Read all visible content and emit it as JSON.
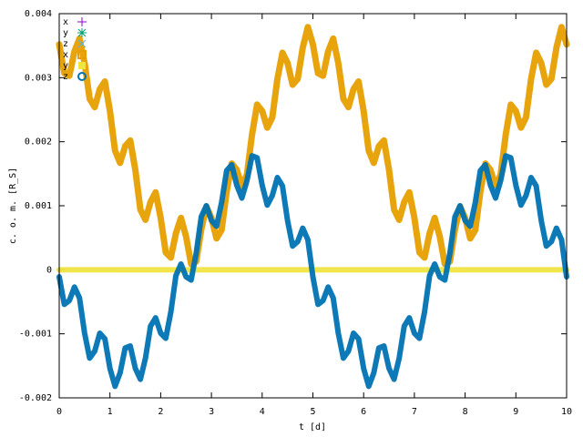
{
  "chart_data": {
    "type": "line",
    "xlabel": "t [d]",
    "ylabel": "c. o. m. [R_S]",
    "xlim": [
      0,
      10
    ],
    "xticks": [
      0,
      1,
      2,
      3,
      4,
      5,
      6,
      7,
      8,
      9,
      10
    ],
    "ylim": [
      -0.002,
      0.004
    ],
    "yticks": [
      -0.002,
      -0.001,
      0,
      0.001,
      0.002,
      0.003,
      0.004
    ],
    "legend": "top-left",
    "x": [
      0,
      0.1,
      0.2,
      0.3,
      0.4,
      0.5,
      0.6,
      0.7,
      0.8,
      0.9,
      1,
      1.1,
      1.2,
      1.3,
      1.4,
      1.5,
      1.6,
      1.7,
      1.8,
      1.9,
      2,
      2.1,
      2.2,
      2.3,
      2.4,
      2.5,
      2.6,
      2.7,
      2.8,
      2.9,
      3,
      3.1,
      3.2,
      3.3,
      3.4,
      3.5,
      3.6,
      3.7,
      3.8,
      3.9,
      4,
      4.1,
      4.2,
      4.3,
      4.4,
      4.5,
      4.6,
      4.7,
      4.8,
      4.9,
      5,
      5.1,
      5.2,
      5.3,
      5.4,
      5.5,
      5.6,
      5.7,
      5.8,
      5.9,
      6,
      6.1,
      6.2,
      6.3,
      6.4,
      6.5,
      6.6,
      6.7,
      6.8,
      6.9,
      7,
      7.1,
      7.2,
      7.3,
      7.4,
      7.5,
      7.6,
      7.7,
      7.8,
      7.9,
      8,
      8.1,
      8.2,
      8.3,
      8.4,
      8.5,
      8.6,
      8.7,
      8.8,
      8.9,
      9,
      9.1,
      9.2,
      9.3,
      9.4,
      9.5,
      9.6,
      9.7,
      9.8,
      9.9,
      10
    ],
    "series": [
      {
        "name": "x",
        "color": "#9400d3",
        "marker": "plus",
        "values": [
          null,
          null,
          null,
          null,
          null,
          null,
          null,
          null,
          null,
          null,
          null,
          null,
          null,
          null,
          null,
          null,
          null,
          null,
          null,
          null,
          null,
          null,
          null,
          null,
          null,
          null,
          null,
          null,
          null,
          null,
          null,
          null,
          null,
          null,
          null,
          null,
          null,
          null,
          null,
          null,
          null,
          null,
          null,
          null,
          null,
          null,
          null,
          null,
          null,
          null,
          null,
          null,
          null,
          null,
          null,
          null,
          null,
          null,
          null,
          null,
          null,
          null,
          null,
          null,
          null,
          null,
          null,
          null,
          null,
          null,
          null,
          null,
          null,
          null,
          null,
          null,
          null,
          null,
          null,
          null,
          null,
          null,
          null,
          null,
          null,
          null,
          null,
          null,
          null,
          null,
          null,
          null,
          null,
          null,
          null,
          null,
          null,
          null,
          null,
          null,
          null
        ]
      },
      {
        "name": "y",
        "color": "#009e73",
        "marker": "star",
        "values": [
          null,
          null,
          null,
          null,
          null,
          null,
          null,
          null,
          null,
          null,
          null,
          null,
          null,
          null,
          null,
          null,
          null,
          null,
          null,
          null,
          null,
          null,
          null,
          null,
          null,
          null,
          null,
          null,
          null,
          null,
          null,
          null,
          null,
          null,
          null,
          null,
          null,
          null,
          null,
          null,
          null,
          null,
          null,
          null,
          null,
          null,
          null,
          null,
          null,
          null,
          null,
          null,
          null,
          null,
          null,
          null,
          null,
          null,
          null,
          null,
          null,
          null,
          null,
          null,
          null,
          null,
          null,
          null,
          null,
          null,
          null,
          null,
          null,
          null,
          null,
          null,
          null,
          null,
          null,
          null,
          null,
          null,
          null,
          null,
          null,
          null,
          null,
          null,
          null,
          null,
          null,
          null,
          null,
          null,
          null,
          null,
          null,
          null,
          null,
          null,
          null
        ]
      },
      {
        "name": "z",
        "color": "#56b4e9",
        "marker": "cross",
        "values": [
          null,
          null,
          null,
          null,
          null,
          null,
          null,
          null,
          null,
          null,
          null,
          null,
          null,
          null,
          null,
          null,
          null,
          null,
          null,
          null,
          null,
          null,
          null,
          null,
          null,
          null,
          null,
          null,
          null,
          null,
          null,
          null,
          null,
          null,
          null,
          null,
          null,
          null,
          null,
          null,
          null,
          null,
          null,
          null,
          null,
          null,
          null,
          null,
          null,
          null,
          null,
          null,
          null,
          null,
          null,
          null,
          null,
          null,
          null,
          null,
          null,
          null,
          null,
          null,
          null,
          null,
          null,
          null,
          null,
          null,
          null,
          null,
          null,
          null,
          null,
          null,
          null,
          null,
          null,
          null,
          null,
          null,
          null,
          null,
          null,
          null,
          null,
          null,
          null,
          null,
          null,
          null,
          null,
          null,
          null,
          null,
          null,
          null,
          null,
          null,
          null
        ]
      },
      {
        "name": "x",
        "color": "#e69f00",
        "marker": "box",
        "values": [
          0.00352,
          0.00307,
          0.00303,
          0.00341,
          0.00361,
          0.00323,
          0.00267,
          0.00254,
          0.00282,
          0.00294,
          0.00248,
          0.00186,
          0.00167,
          0.00193,
          0.00202,
          0.00156,
          0.00094,
          0.00078,
          0.00106,
          0.00121,
          0.00081,
          0.00027,
          0.00019,
          0.00057,
          0.00081,
          0.00052,
          9e-05,
          0.00013,
          0.00063,
          0.00099,
          0.00081,
          0.00049,
          0.00062,
          0.00122,
          0.00166,
          0.00156,
          0.0013,
          0.00149,
          0.00211,
          0.00258,
          0.00248,
          0.00222,
          0.00238,
          0.00298,
          0.00339,
          0.00323,
          0.00289,
          0.00298,
          0.00347,
          0.00379,
          0.00352,
          0.00307,
          0.00303,
          0.00341,
          0.00361,
          0.00323,
          0.00267,
          0.00254,
          0.00282,
          0.00294,
          0.00248,
          0.00186,
          0.00167,
          0.00193,
          0.00202,
          0.00156,
          0.00094,
          0.00078,
          0.00106,
          0.00121,
          0.00081,
          0.00027,
          0.00019,
          0.00057,
          0.00081,
          0.00052,
          9e-05,
          0.00013,
          0.00063,
          0.00099,
          0.00081,
          0.00049,
          0.00062,
          0.00122,
          0.00166,
          0.00156,
          0.0013,
          0.00149,
          0.00211,
          0.00258,
          0.00248,
          0.00222,
          0.00238,
          0.00298,
          0.00339,
          0.00323,
          0.00289,
          0.00298,
          0.00347,
          0.00379,
          0.00352
        ]
      },
      {
        "name": "y",
        "color": "#f0e442",
        "marker": "fill",
        "values": [
          0,
          0,
          0,
          0,
          0,
          0,
          0,
          0,
          0,
          0,
          0,
          0,
          0,
          0,
          0,
          0,
          0,
          0,
          0,
          0,
          0,
          0,
          0,
          0,
          0,
          0,
          0,
          0,
          0,
          0,
          0,
          0,
          0,
          0,
          0,
          0,
          0,
          0,
          0,
          0,
          0,
          0,
          0,
          0,
          0,
          0,
          0,
          0,
          0,
          0,
          0,
          0,
          0,
          0,
          0,
          0,
          0,
          0,
          0,
          0,
          0,
          0,
          0,
          0,
          0,
          0,
          0,
          0,
          0,
          0,
          0,
          0,
          0,
          0,
          0,
          0,
          0,
          0,
          0,
          0,
          0,
          0,
          0,
          0,
          0,
          0,
          0,
          0,
          0,
          0,
          0,
          0,
          0,
          0,
          0,
          0,
          0,
          0,
          0,
          0,
          0
        ]
      },
      {
        "name": "z",
        "color": "#0072b2",
        "marker": "circle",
        "values": [
          -0.00011,
          -0.00054,
          -0.00048,
          -0.00027,
          -0.00044,
          -0.00099,
          -0.00138,
          -0.00127,
          -0.00099,
          -0.00108,
          -0.00154,
          -0.00182,
          -0.00161,
          -0.00122,
          -0.00119,
          -0.00154,
          -0.00171,
          -0.00138,
          -0.00088,
          -0.00075,
          -0.00099,
          -0.00107,
          -0.00066,
          -9e-05,
          9e-05,
          -0.00011,
          -0.00016,
          0.00026,
          0.00083,
          0.001,
          0.00077,
          0.00068,
          0.00105,
          0.00155,
          0.00164,
          0.00132,
          0.00112,
          0.00139,
          0.00178,
          0.00175,
          0.00132,
          0.00101,
          0.00116,
          0.00144,
          0.00131,
          0.00077,
          0.00037,
          0.00044,
          0.00065,
          0.00047,
          -0.00011,
          -0.00054,
          -0.00048,
          -0.00027,
          -0.00044,
          -0.00099,
          -0.00138,
          -0.00127,
          -0.00099,
          -0.00108,
          -0.00154,
          -0.00182,
          -0.00161,
          -0.00122,
          -0.00119,
          -0.00154,
          -0.00171,
          -0.00138,
          -0.00088,
          -0.00075,
          -0.00099,
          -0.00107,
          -0.00066,
          -9e-05,
          9e-05,
          -0.00011,
          -0.00016,
          0.00026,
          0.00083,
          0.001,
          0.00077,
          0.00068,
          0.00105,
          0.00155,
          0.00164,
          0.00132,
          0.00112,
          0.00139,
          0.00178,
          0.00175,
          0.00132,
          0.00101,
          0.00116,
          0.00144,
          0.00131,
          0.00077,
          0.00037,
          0.00044,
          0.00065,
          0.00047,
          -0.00011
        ]
      }
    ]
  }
}
